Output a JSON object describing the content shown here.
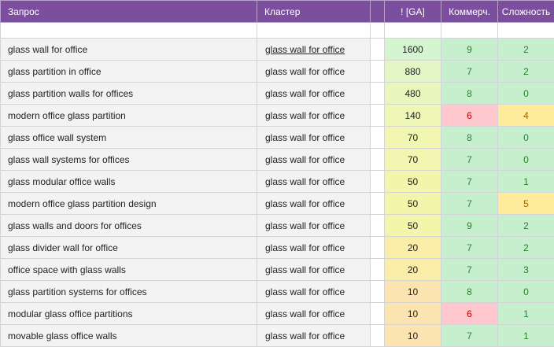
{
  "headers": {
    "query": "Запрос",
    "cluster": "Кластер",
    "ga": "! [GA]",
    "commercial": "Коммерч.",
    "difficulty": "Сложность"
  },
  "colors": {
    "header_bg": "#7b4f9e",
    "green": "#c6efce",
    "green_text": "#2e7d32",
    "red": "#ffc7ce",
    "red_text": "#c00000",
    "yellow": "#ffeb9c",
    "yellow_text": "#9c6500",
    "ga_high": "#d4f5cf",
    "ga_mid": "#f3f7b0",
    "ga_low": "#fde3b3"
  },
  "rows": [
    {
      "query": "glass wall for office",
      "cluster": "glass wall for office",
      "ga": "1600",
      "commercial": "9",
      "difficulty": "2",
      "ga_color": "#d4f5cf",
      "com_status": "green",
      "dif_status": "green",
      "cluster_link": true
    },
    {
      "query": "glass partition in office",
      "cluster": "glass wall for office",
      "ga": "880",
      "commercial": "7",
      "difficulty": "2",
      "ga_color": "#e2f7c5",
      "com_status": "green",
      "dif_status": "green",
      "cluster_link": false
    },
    {
      "query": "glass partition walls for offices",
      "cluster": "glass wall for office",
      "ga": "480",
      "commercial": "8",
      "difficulty": "0",
      "ga_color": "#e9f7bd",
      "com_status": "green",
      "dif_status": "green",
      "cluster_link": false
    },
    {
      "query": "modern office glass partition",
      "cluster": "glass wall for office",
      "ga": "140",
      "commercial": "6",
      "difficulty": "4",
      "ga_color": "#eef7b5",
      "com_status": "red",
      "dif_status": "yellow",
      "cluster_link": false
    },
    {
      "query": "glass office wall system",
      "cluster": "glass wall for office",
      "ga": "70",
      "commercial": "8",
      "difficulty": "0",
      "ga_color": "#f1f7b0",
      "com_status": "green",
      "dif_status": "green",
      "cluster_link": false
    },
    {
      "query": "glass wall systems for offices",
      "cluster": "glass wall for office",
      "ga": "70",
      "commercial": "7",
      "difficulty": "0",
      "ga_color": "#f1f7b0",
      "com_status": "green",
      "dif_status": "green",
      "cluster_link": false
    },
    {
      "query": "glass modular office walls",
      "cluster": "glass wall for office",
      "ga": "50",
      "commercial": "7",
      "difficulty": "1",
      "ga_color": "#f3f5ab",
      "com_status": "green",
      "dif_status": "green",
      "cluster_link": false
    },
    {
      "query": "modern office glass partition design",
      "cluster": "glass wall for office",
      "ga": "50",
      "commercial": "7",
      "difficulty": "5",
      "ga_color": "#f3f5ab",
      "com_status": "green",
      "dif_status": "yellow",
      "cluster_link": false
    },
    {
      "query": "glass walls and doors for offices",
      "cluster": "glass wall for office",
      "ga": "50",
      "commercial": "9",
      "difficulty": "2",
      "ga_color": "#f3f5ab",
      "com_status": "green",
      "dif_status": "green",
      "cluster_link": false
    },
    {
      "query": "glass divider wall for office",
      "cluster": "glass wall for office",
      "ga": "20",
      "commercial": "7",
      "difficulty": "2",
      "ga_color": "#f9eda8",
      "com_status": "green",
      "dif_status": "green",
      "cluster_link": false
    },
    {
      "query": "office space with glass walls",
      "cluster": "glass wall for office",
      "ga": "20",
      "commercial": "7",
      "difficulty": "3",
      "ga_color": "#f9eda8",
      "com_status": "green",
      "dif_status": "green",
      "cluster_link": false
    },
    {
      "query": "glass partition systems for offices",
      "cluster": "glass wall for office",
      "ga": "10",
      "commercial": "8",
      "difficulty": "0",
      "ga_color": "#fbe4b0",
      "com_status": "green",
      "dif_status": "green",
      "cluster_link": false
    },
    {
      "query": "modular glass office partitions",
      "cluster": "glass wall for office",
      "ga": "10",
      "commercial": "6",
      "difficulty": "1",
      "ga_color": "#fbe4b0",
      "com_status": "red",
      "dif_status": "green",
      "cluster_link": false
    },
    {
      "query": "movable glass office walls",
      "cluster": "glass wall for office",
      "ga": "10",
      "commercial": "7",
      "difficulty": "1",
      "ga_color": "#fbe4b0",
      "com_status": "green",
      "dif_status": "green",
      "cluster_link": false
    }
  ]
}
